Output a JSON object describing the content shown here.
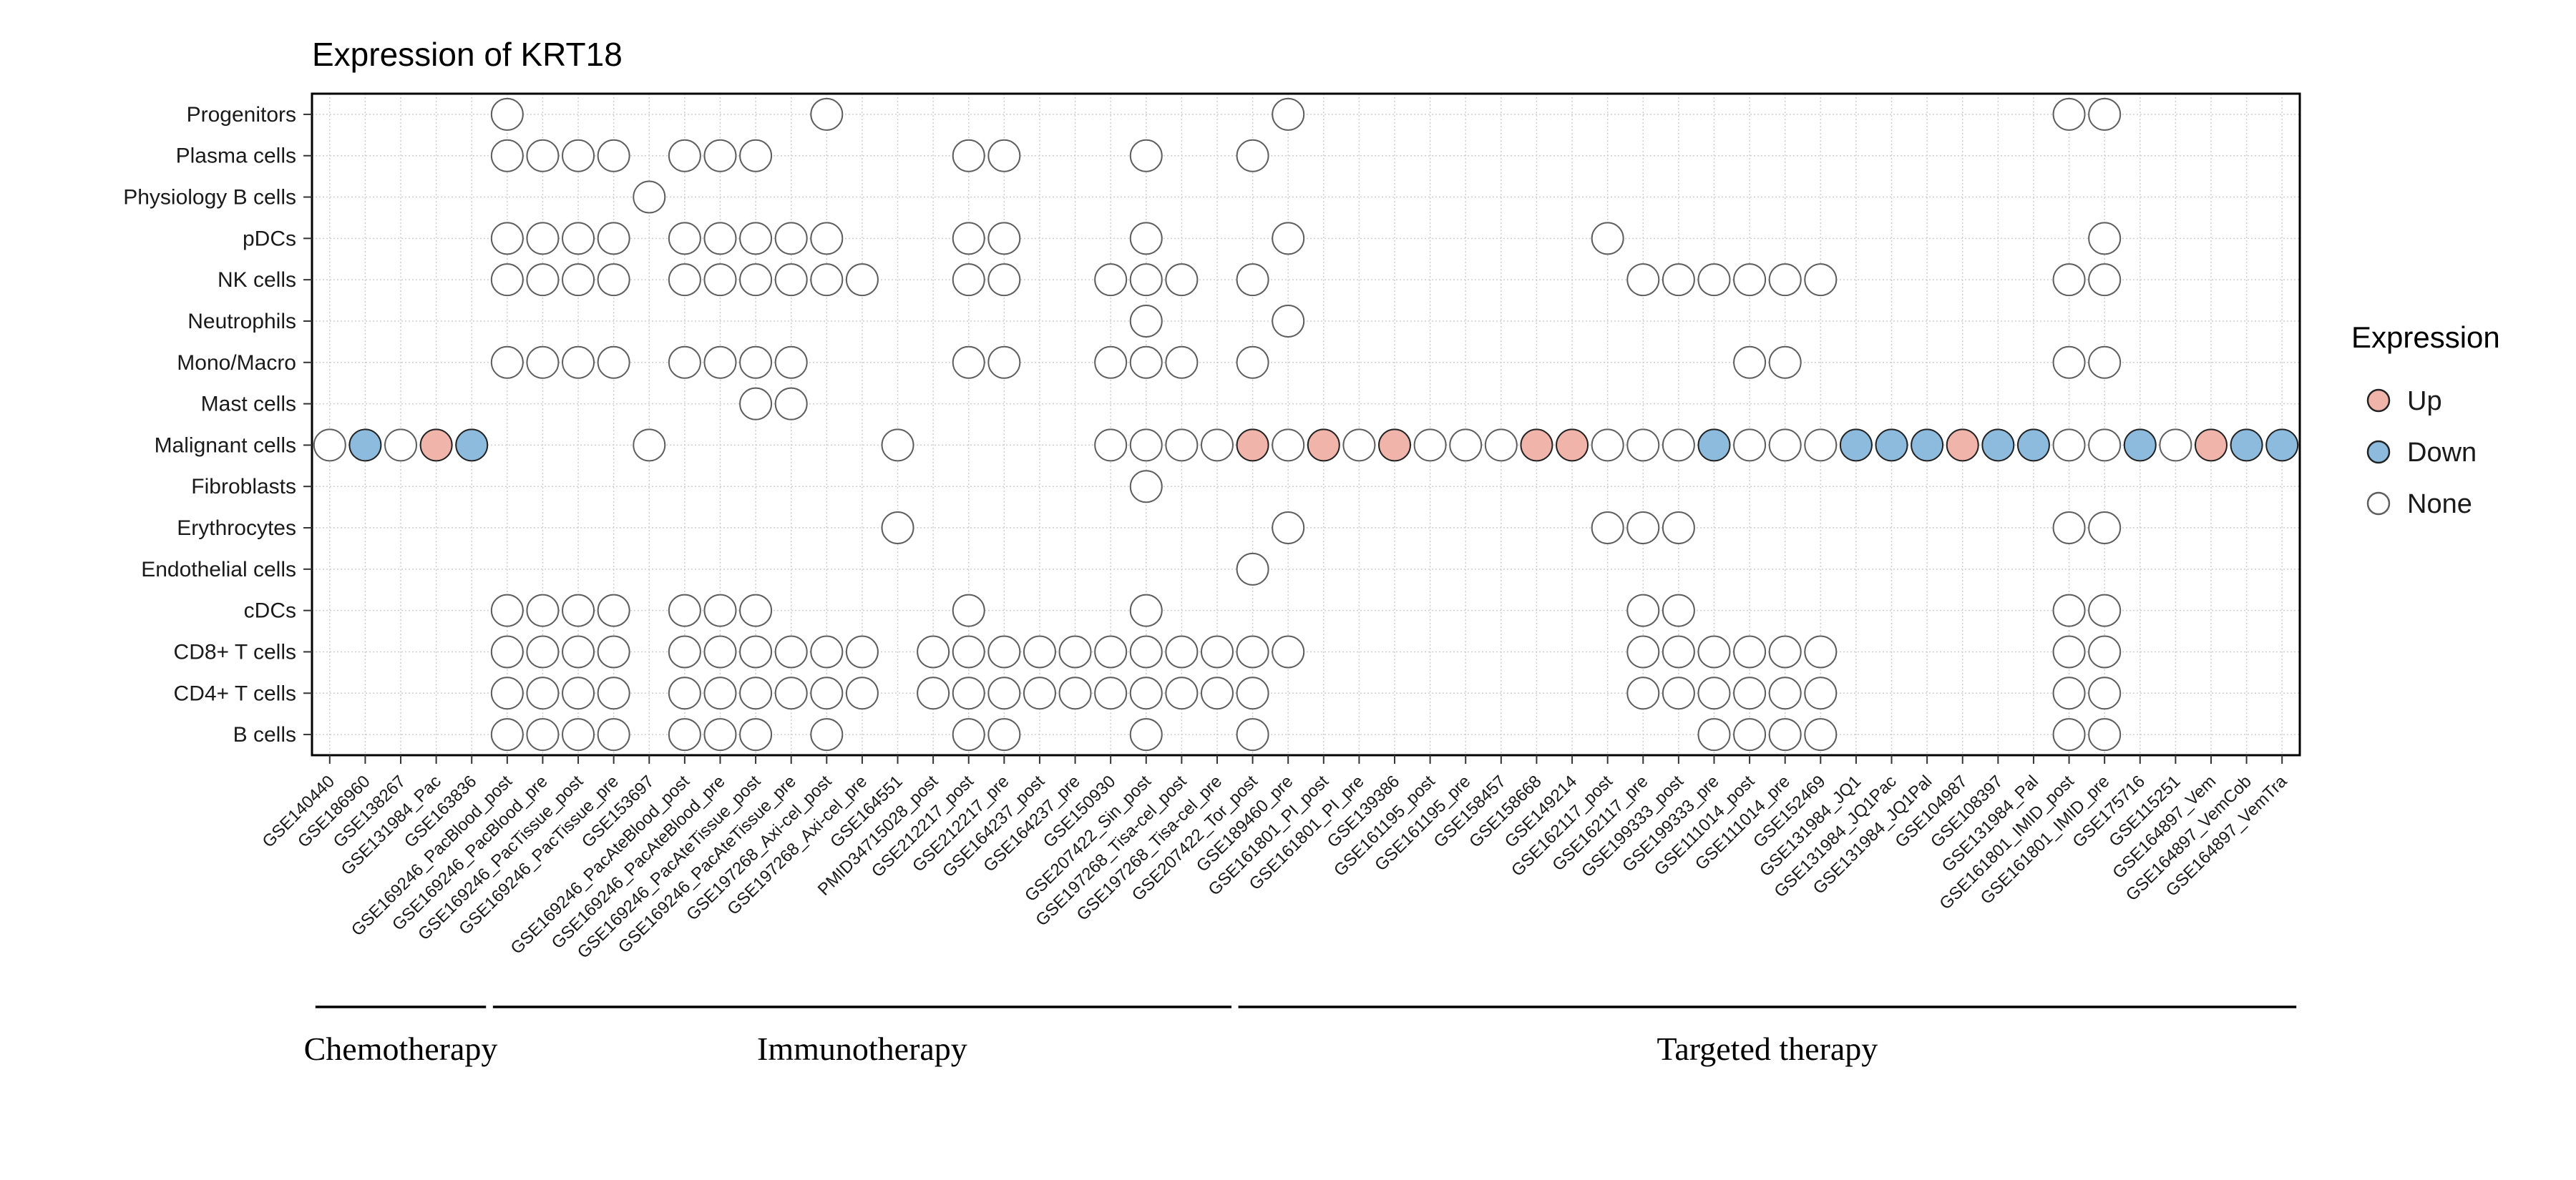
{
  "title": "Expression of KRT18",
  "legend": {
    "title": "Expression",
    "entries": [
      {
        "label": "Up",
        "fill": "#F0B4AB",
        "stroke": "#222222"
      },
      {
        "label": "Down",
        "fill": "#8CBBDD",
        "stroke": "#222222"
      },
      {
        "label": "None",
        "fill": "#FFFFFF",
        "stroke": "#5E5E5E"
      }
    ]
  },
  "colors": {
    "up": "#F0B4AB",
    "down": "#8CBBDD",
    "none": "#FFFFFF",
    "stroke_colored": "#222222",
    "stroke_none": "#5E5E5E",
    "grid": "#CFCFCF",
    "panel_border": "#000000",
    "axis_text": "#1A1A1A"
  },
  "groups": [
    {
      "label": "Chemotherapy",
      "start_index": 0,
      "end_index": 4
    },
    {
      "label": "Immunotherapy",
      "start_index": 5,
      "end_index": 25
    },
    {
      "label": "Targeted therapy",
      "start_index": 26,
      "end_index": 55
    }
  ],
  "chart_data": {
    "type": "scatter",
    "subtype": "categorical-dot-matrix",
    "title": "Expression of KRT18",
    "xlabel": "",
    "ylabel": "",
    "grid": true,
    "x_tick_rotation": 45,
    "legend_position": "right",
    "legend": {
      "title": "Expression",
      "labels": [
        "Up",
        "Down",
        "None"
      ]
    },
    "x_categories": [
      "GSE140440",
      "GSE186960",
      "GSE138267",
      "GSE131984_Pac",
      "GSE163836",
      "GSE169246_PacBlood_post",
      "GSE169246_PacBlood_pre",
      "GSE169246_PacTissue_post",
      "GSE169246_PacTissue_pre",
      "GSE153697",
      "GSE169246_PacAteBlood_post",
      "GSE169246_PacAteBlood_pre",
      "GSE169246_PacAteTissue_post",
      "GSE169246_PacAteTissue_pre",
      "GSE197268_Axi-cel_post",
      "GSE197268_Axi-cel_pre",
      "GSE164551",
      "PMID34715028_post",
      "GSE212217_post",
      "GSE212217_pre",
      "GSE164237_post",
      "GSE164237_pre",
      "GSE150930",
      "GSE207422_Sin_post",
      "GSE197268_Tisa-cel_post",
      "GSE197268_Tisa-cel_pre",
      "GSE207422_Tor_post",
      "GSE189460_pre",
      "GSE161801_PI_post",
      "GSE161801_PI_pre",
      "GSE139386",
      "GSE161195_post",
      "GSE161195_pre",
      "GSE158457",
      "GSE158668",
      "GSE149214",
      "GSE162117_post",
      "GSE162117_pre",
      "GSE199333_post",
      "GSE199333_pre",
      "GSE111014_post",
      "GSE111014_pre",
      "GSE152469",
      "GSE131984_JQ1",
      "GSE131984_JQ1Pac",
      "GSE131984_JQ1Pal",
      "GSE104987",
      "GSE108397",
      "GSE131984_Pal",
      "GSE161801_IMID_post",
      "GSE161801_IMID_pre",
      "GSE175716",
      "GSE115251",
      "GSE164897_Vem",
      "GSE164897_VemCob",
      "GSE164897_VemTra"
    ],
    "y_categories": [
      "Progenitors",
      "Plasma cells",
      "Physiology B cells",
      "pDCs",
      "NK cells",
      "Neutrophils",
      "Mono/Macro",
      "Mast cells",
      "Malignant cells",
      "Fibroblasts",
      "Erythrocytes",
      "Endothelial cells",
      "cDCs",
      "CD8+ T cells",
      "CD4+ T cells",
      "B cells"
    ],
    "point_encoding": {
      "format": "[column_index, row_index, expression_code]",
      "codes": {
        "N": "None",
        "U": "Up",
        "D": "Down"
      }
    },
    "points": [
      [
        5,
        0,
        "N"
      ],
      [
        14,
        0,
        "N"
      ],
      [
        27,
        0,
        "N"
      ],
      [
        49,
        0,
        "N"
      ],
      [
        50,
        0,
        "N"
      ],
      [
        5,
        1,
        "N"
      ],
      [
        6,
        1,
        "N"
      ],
      [
        7,
        1,
        "N"
      ],
      [
        8,
        1,
        "N"
      ],
      [
        10,
        1,
        "N"
      ],
      [
        11,
        1,
        "N"
      ],
      [
        12,
        1,
        "N"
      ],
      [
        18,
        1,
        "N"
      ],
      [
        19,
        1,
        "N"
      ],
      [
        23,
        1,
        "N"
      ],
      [
        26,
        1,
        "N"
      ],
      [
        9,
        2,
        "N"
      ],
      [
        5,
        3,
        "N"
      ],
      [
        6,
        3,
        "N"
      ],
      [
        7,
        3,
        "N"
      ],
      [
        8,
        3,
        "N"
      ],
      [
        10,
        3,
        "N"
      ],
      [
        11,
        3,
        "N"
      ],
      [
        12,
        3,
        "N"
      ],
      [
        13,
        3,
        "N"
      ],
      [
        14,
        3,
        "N"
      ],
      [
        18,
        3,
        "N"
      ],
      [
        19,
        3,
        "N"
      ],
      [
        23,
        3,
        "N"
      ],
      [
        27,
        3,
        "N"
      ],
      [
        36,
        3,
        "N"
      ],
      [
        50,
        3,
        "N"
      ],
      [
        5,
        4,
        "N"
      ],
      [
        6,
        4,
        "N"
      ],
      [
        7,
        4,
        "N"
      ],
      [
        8,
        4,
        "N"
      ],
      [
        10,
        4,
        "N"
      ],
      [
        11,
        4,
        "N"
      ],
      [
        12,
        4,
        "N"
      ],
      [
        13,
        4,
        "N"
      ],
      [
        14,
        4,
        "N"
      ],
      [
        15,
        4,
        "N"
      ],
      [
        18,
        4,
        "N"
      ],
      [
        19,
        4,
        "N"
      ],
      [
        22,
        4,
        "N"
      ],
      [
        23,
        4,
        "N"
      ],
      [
        24,
        4,
        "N"
      ],
      [
        26,
        4,
        "N"
      ],
      [
        37,
        4,
        "N"
      ],
      [
        38,
        4,
        "N"
      ],
      [
        39,
        4,
        "N"
      ],
      [
        40,
        4,
        "N"
      ],
      [
        41,
        4,
        "N"
      ],
      [
        42,
        4,
        "N"
      ],
      [
        49,
        4,
        "N"
      ],
      [
        50,
        4,
        "N"
      ],
      [
        23,
        5,
        "N"
      ],
      [
        27,
        5,
        "N"
      ],
      [
        5,
        6,
        "N"
      ],
      [
        6,
        6,
        "N"
      ],
      [
        7,
        6,
        "N"
      ],
      [
        8,
        6,
        "N"
      ],
      [
        10,
        6,
        "N"
      ],
      [
        11,
        6,
        "N"
      ],
      [
        12,
        6,
        "N"
      ],
      [
        13,
        6,
        "N"
      ],
      [
        18,
        6,
        "N"
      ],
      [
        19,
        6,
        "N"
      ],
      [
        22,
        6,
        "N"
      ],
      [
        23,
        6,
        "N"
      ],
      [
        24,
        6,
        "N"
      ],
      [
        26,
        6,
        "N"
      ],
      [
        40,
        6,
        "N"
      ],
      [
        41,
        6,
        "N"
      ],
      [
        49,
        6,
        "N"
      ],
      [
        50,
        6,
        "N"
      ],
      [
        12,
        7,
        "N"
      ],
      [
        13,
        7,
        "N"
      ],
      [
        0,
        8,
        "N"
      ],
      [
        1,
        8,
        "D"
      ],
      [
        2,
        8,
        "N"
      ],
      [
        3,
        8,
        "U"
      ],
      [
        4,
        8,
        "D"
      ],
      [
        9,
        8,
        "N"
      ],
      [
        16,
        8,
        "N"
      ],
      [
        22,
        8,
        "N"
      ],
      [
        23,
        8,
        "N"
      ],
      [
        24,
        8,
        "N"
      ],
      [
        25,
        8,
        "N"
      ],
      [
        26,
        8,
        "U"
      ],
      [
        27,
        8,
        "N"
      ],
      [
        28,
        8,
        "U"
      ],
      [
        29,
        8,
        "N"
      ],
      [
        30,
        8,
        "U"
      ],
      [
        31,
        8,
        "N"
      ],
      [
        32,
        8,
        "N"
      ],
      [
        33,
        8,
        "N"
      ],
      [
        34,
        8,
        "U"
      ],
      [
        35,
        8,
        "U"
      ],
      [
        36,
        8,
        "N"
      ],
      [
        37,
        8,
        "N"
      ],
      [
        38,
        8,
        "N"
      ],
      [
        39,
        8,
        "D"
      ],
      [
        40,
        8,
        "N"
      ],
      [
        41,
        8,
        "N"
      ],
      [
        42,
        8,
        "N"
      ],
      [
        43,
        8,
        "D"
      ],
      [
        44,
        8,
        "D"
      ],
      [
        45,
        8,
        "D"
      ],
      [
        46,
        8,
        "U"
      ],
      [
        47,
        8,
        "D"
      ],
      [
        48,
        8,
        "D"
      ],
      [
        49,
        8,
        "N"
      ],
      [
        50,
        8,
        "N"
      ],
      [
        51,
        8,
        "D"
      ],
      [
        52,
        8,
        "N"
      ],
      [
        53,
        8,
        "U"
      ],
      [
        54,
        8,
        "D"
      ],
      [
        55,
        8,
        "D"
      ],
      [
        23,
        9,
        "N"
      ],
      [
        16,
        10,
        "N"
      ],
      [
        27,
        10,
        "N"
      ],
      [
        36,
        10,
        "N"
      ],
      [
        37,
        10,
        "N"
      ],
      [
        38,
        10,
        "N"
      ],
      [
        49,
        10,
        "N"
      ],
      [
        50,
        10,
        "N"
      ],
      [
        26,
        11,
        "N"
      ],
      [
        5,
        12,
        "N"
      ],
      [
        6,
        12,
        "N"
      ],
      [
        7,
        12,
        "N"
      ],
      [
        8,
        12,
        "N"
      ],
      [
        10,
        12,
        "N"
      ],
      [
        11,
        12,
        "N"
      ],
      [
        12,
        12,
        "N"
      ],
      [
        18,
        12,
        "N"
      ],
      [
        23,
        12,
        "N"
      ],
      [
        37,
        12,
        "N"
      ],
      [
        38,
        12,
        "N"
      ],
      [
        49,
        12,
        "N"
      ],
      [
        50,
        12,
        "N"
      ],
      [
        5,
        13,
        "N"
      ],
      [
        6,
        13,
        "N"
      ],
      [
        7,
        13,
        "N"
      ],
      [
        8,
        13,
        "N"
      ],
      [
        10,
        13,
        "N"
      ],
      [
        11,
        13,
        "N"
      ],
      [
        12,
        13,
        "N"
      ],
      [
        13,
        13,
        "N"
      ],
      [
        14,
        13,
        "N"
      ],
      [
        15,
        13,
        "N"
      ],
      [
        17,
        13,
        "N"
      ],
      [
        18,
        13,
        "N"
      ],
      [
        19,
        13,
        "N"
      ],
      [
        20,
        13,
        "N"
      ],
      [
        21,
        13,
        "N"
      ],
      [
        22,
        13,
        "N"
      ],
      [
        23,
        13,
        "N"
      ],
      [
        24,
        13,
        "N"
      ],
      [
        25,
        13,
        "N"
      ],
      [
        26,
        13,
        "N"
      ],
      [
        27,
        13,
        "N"
      ],
      [
        37,
        13,
        "N"
      ],
      [
        38,
        13,
        "N"
      ],
      [
        39,
        13,
        "N"
      ],
      [
        40,
        13,
        "N"
      ],
      [
        41,
        13,
        "N"
      ],
      [
        42,
        13,
        "N"
      ],
      [
        49,
        13,
        "N"
      ],
      [
        50,
        13,
        "N"
      ],
      [
        5,
        14,
        "N"
      ],
      [
        6,
        14,
        "N"
      ],
      [
        7,
        14,
        "N"
      ],
      [
        8,
        14,
        "N"
      ],
      [
        10,
        14,
        "N"
      ],
      [
        11,
        14,
        "N"
      ],
      [
        12,
        14,
        "N"
      ],
      [
        13,
        14,
        "N"
      ],
      [
        14,
        14,
        "N"
      ],
      [
        15,
        14,
        "N"
      ],
      [
        17,
        14,
        "N"
      ],
      [
        18,
        14,
        "N"
      ],
      [
        19,
        14,
        "N"
      ],
      [
        20,
        14,
        "N"
      ],
      [
        21,
        14,
        "N"
      ],
      [
        22,
        14,
        "N"
      ],
      [
        23,
        14,
        "N"
      ],
      [
        24,
        14,
        "N"
      ],
      [
        25,
        14,
        "N"
      ],
      [
        26,
        14,
        "N"
      ],
      [
        37,
        14,
        "N"
      ],
      [
        38,
        14,
        "N"
      ],
      [
        39,
        14,
        "N"
      ],
      [
        40,
        14,
        "N"
      ],
      [
        41,
        14,
        "N"
      ],
      [
        42,
        14,
        "N"
      ],
      [
        49,
        14,
        "N"
      ],
      [
        50,
        14,
        "N"
      ],
      [
        5,
        15,
        "N"
      ],
      [
        6,
        15,
        "N"
      ],
      [
        7,
        15,
        "N"
      ],
      [
        8,
        15,
        "N"
      ],
      [
        10,
        15,
        "N"
      ],
      [
        11,
        15,
        "N"
      ],
      [
        12,
        15,
        "N"
      ],
      [
        14,
        15,
        "N"
      ],
      [
        18,
        15,
        "N"
      ],
      [
        19,
        15,
        "N"
      ],
      [
        23,
        15,
        "N"
      ],
      [
        26,
        15,
        "N"
      ],
      [
        39,
        15,
        "N"
      ],
      [
        40,
        15,
        "N"
      ],
      [
        41,
        15,
        "N"
      ],
      [
        42,
        15,
        "N"
      ],
      [
        49,
        15,
        "N"
      ],
      [
        50,
        15,
        "N"
      ]
    ],
    "x_group_annotations": [
      {
        "label": "Chemotherapy",
        "from": "GSE140440",
        "to": "GSE163836"
      },
      {
        "label": "Immunotherapy",
        "from": "GSE169246_PacBlood_post",
        "to": "GSE197268_Tisa-cel_pre"
      },
      {
        "label": "Targeted therapy",
        "from": "GSE207422_Tor_post",
        "to": "GSE164897_VemTra"
      }
    ]
  }
}
